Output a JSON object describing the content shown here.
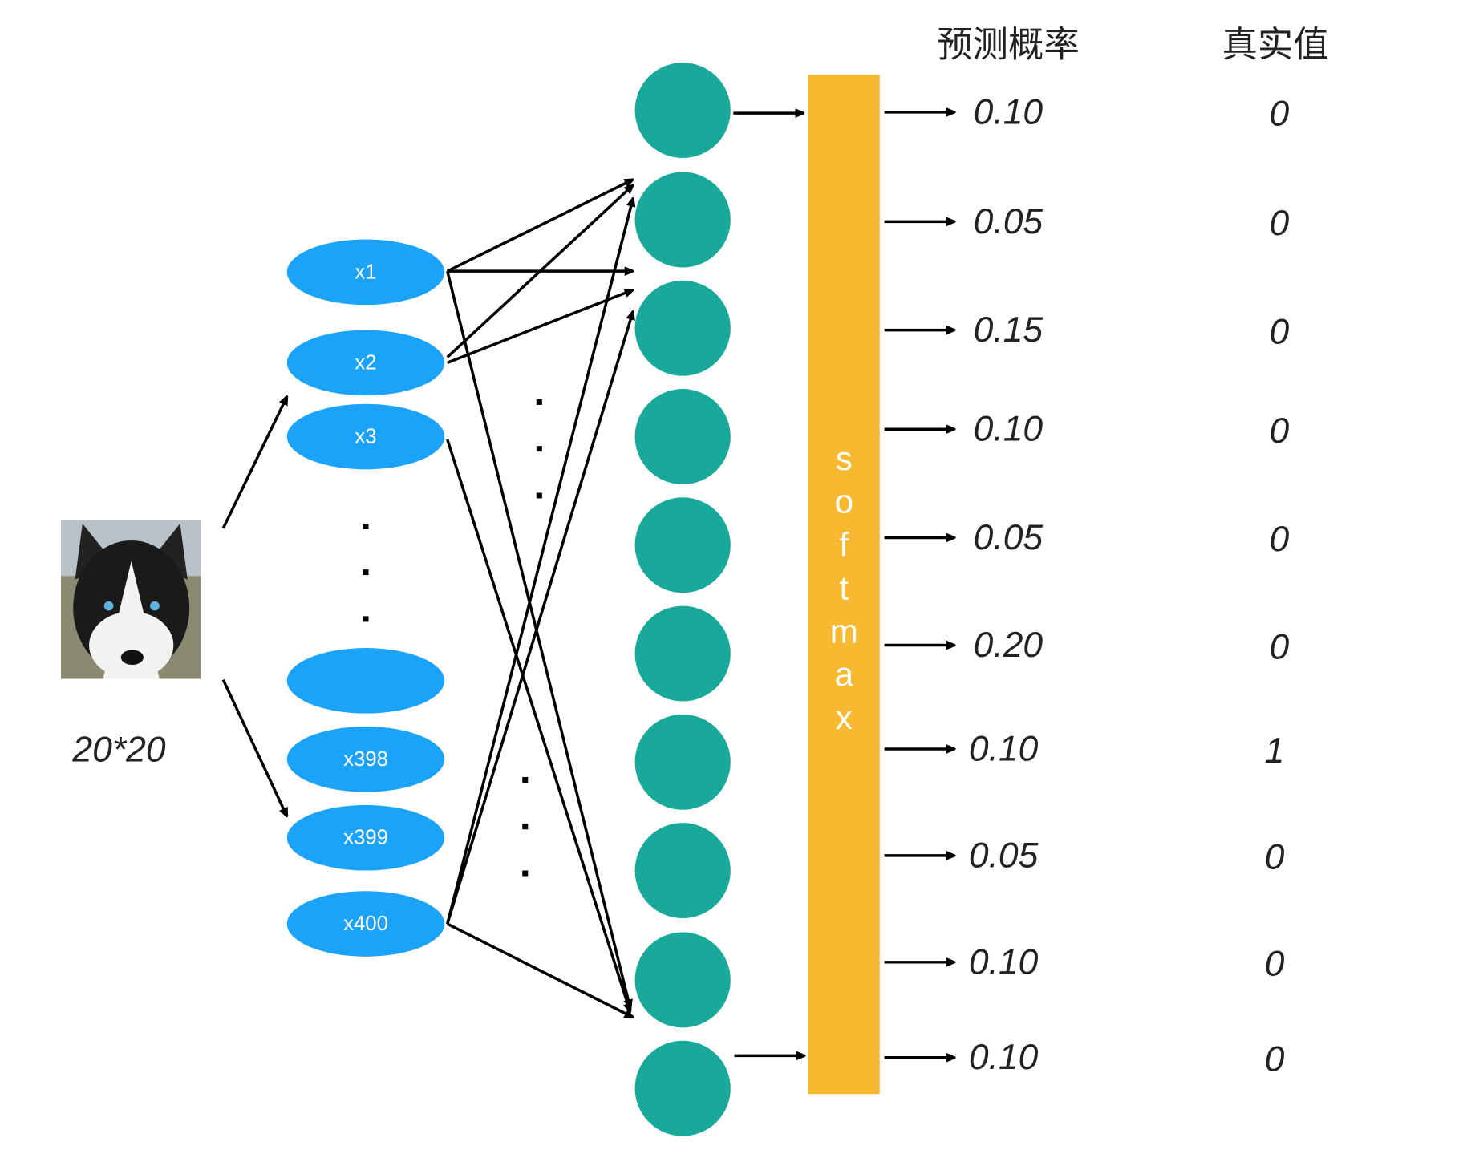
{
  "colors": {
    "input_node": "#1ba3fa",
    "hidden_node": "#19a99a",
    "softmax_bar": "#f6b92f",
    "arrow": "#000000"
  },
  "input_image": {
    "icon": "husky-dog-photo",
    "size_label": "20*20"
  },
  "input_nodes": [
    "x1",
    "x2",
    "x3",
    "",
    "x398",
    "x399",
    "x400"
  ],
  "softmax": {
    "letters": [
      "s",
      "o",
      "f",
      "t",
      "m",
      "a",
      "x"
    ]
  },
  "headers": {
    "predicted": "预测概率",
    "truth": "真实值"
  },
  "predicted_probabilities": [
    "0.10",
    "0.05",
    "0.15",
    "0.10",
    "0.05",
    "0.20",
    "0.10",
    "0.05",
    "0.10",
    "0.10"
  ],
  "true_values": [
    "0",
    "0",
    "0",
    "0",
    "0",
    "0",
    "1",
    "0",
    "0",
    "0"
  ]
}
